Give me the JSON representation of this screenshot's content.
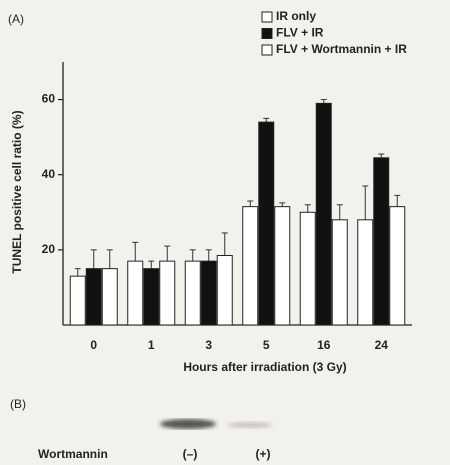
{
  "chart_data": {
    "type": "bar",
    "panel_label": "(A)",
    "xlabel": "Hours after irradiation (3 Gy)",
    "ylabel": "TUNEL positive cell ratio (%)",
    "categories": [
      "0",
      "1",
      "3",
      "5",
      "16",
      "24"
    ],
    "series": [
      {
        "name": "IR only",
        "color": "#ffffff",
        "values": [
          13,
          17,
          17,
          31.5,
          30,
          28
        ],
        "errors": [
          2,
          5,
          3,
          1.5,
          2,
          9
        ]
      },
      {
        "name": "FLV + IR",
        "color": "#111111",
        "values": [
          15,
          15,
          17,
          54,
          59,
          44.5
        ],
        "errors": [
          5,
          2,
          3,
          1,
          1,
          1
        ]
      },
      {
        "name": "FLV + Wortmannin + IR",
        "color": "#ffffff",
        "values": [
          15,
          17,
          18.5,
          31.5,
          28,
          31.5
        ],
        "errors": [
          5,
          4,
          6,
          1,
          4,
          3
        ]
      }
    ],
    "ylim": [
      0,
      70
    ],
    "yticks": [
      20,
      40,
      60
    ],
    "grid": false,
    "legend": "top-right"
  },
  "blot": {
    "panel_label": "(B)",
    "row_label": "Wortmannin",
    "lanes": [
      "(–)",
      "(+)"
    ]
  }
}
